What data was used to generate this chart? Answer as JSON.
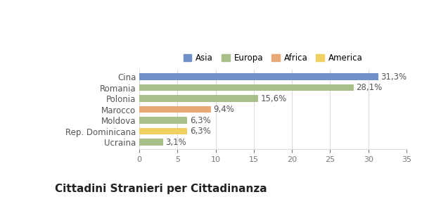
{
  "categories": [
    "Ucraina",
    "Rep. Dominicana",
    "Moldova",
    "Marocco",
    "Polonia",
    "Romania",
    "Cina"
  ],
  "values": [
    3.1,
    6.3,
    6.3,
    9.4,
    15.6,
    28.1,
    31.3
  ],
  "labels": [
    "3,1%",
    "6,3%",
    "6,3%",
    "9,4%",
    "15,6%",
    "28,1%",
    "31,3%"
  ],
  "bar_colors": [
    "#a8bf8a",
    "#f0d060",
    "#a8bf8a",
    "#e8a878",
    "#a8bf8a",
    "#a8bf8a",
    "#7090c8"
  ],
  "xlim": [
    0,
    35
  ],
  "xticks": [
    0,
    5,
    10,
    15,
    20,
    25,
    30,
    35
  ],
  "legend_entries": [
    {
      "label": "Asia",
      "color": "#7090c8"
    },
    {
      "label": "Europa",
      "color": "#a8bf8a"
    },
    {
      "label": "Africa",
      "color": "#e8a878"
    },
    {
      "label": "America",
      "color": "#f0d060"
    }
  ],
  "title": "Cittadini Stranieri per Cittadinanza",
  "background_color": "#ffffff",
  "grid_color": "#dddddd",
  "bar_height": 0.6,
  "label_fontsize": 8.5,
  "title_fontsize": 11,
  "subtitle_fontsize": 8
}
